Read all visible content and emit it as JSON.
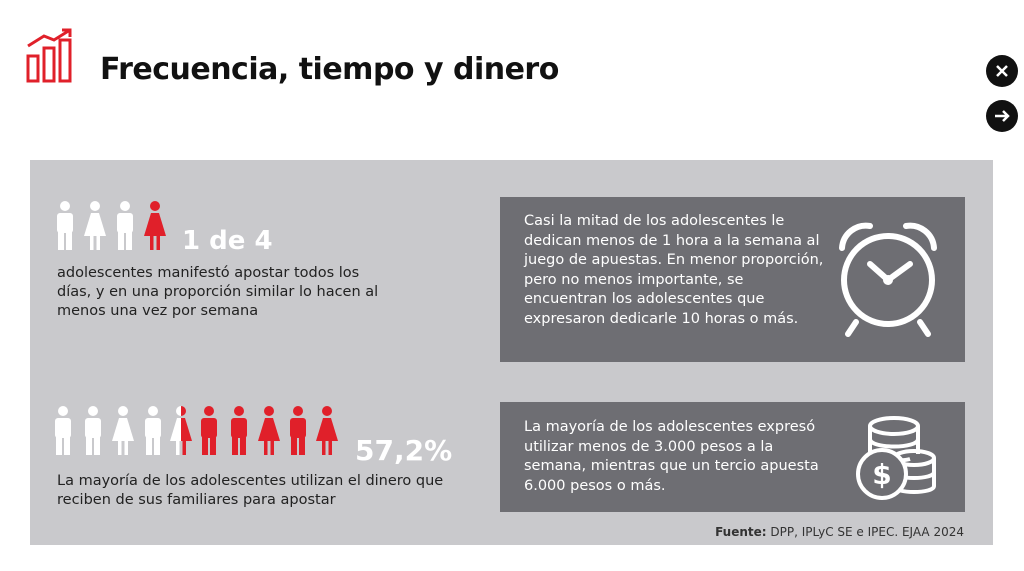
{
  "header": {
    "title": "Frecuencia, tiempo y dinero"
  },
  "stat1": {
    "figure": "1 de 4",
    "text": "adolescentes manifestó apostar todos los días, y en una proporción similar lo hacen al menos una vez por semana"
  },
  "stat2": {
    "figure": "57,2%",
    "text": "La mayoría de los adolescentes utilizan el dinero que reciben de sus familiares para apostar"
  },
  "box1": {
    "text": "Casi la mitad de los adolescentes le dedican menos de 1 hora a la semana al juego de apuestas. En menor proporción, pero no menos importante, se encuentran los adolescentes que expresaron dedicarle 10 horas o más."
  },
  "box2": {
    "text": "La mayoría de los adolescentes expresó utilizar menos de 3.000 pesos a la semana, mientras que un tercio apuesta 6.000 pesos o más."
  },
  "source": {
    "label": "Fuente:",
    "text": "DPP, IPLyC SE e IPEC. EJAA 2024"
  }
}
